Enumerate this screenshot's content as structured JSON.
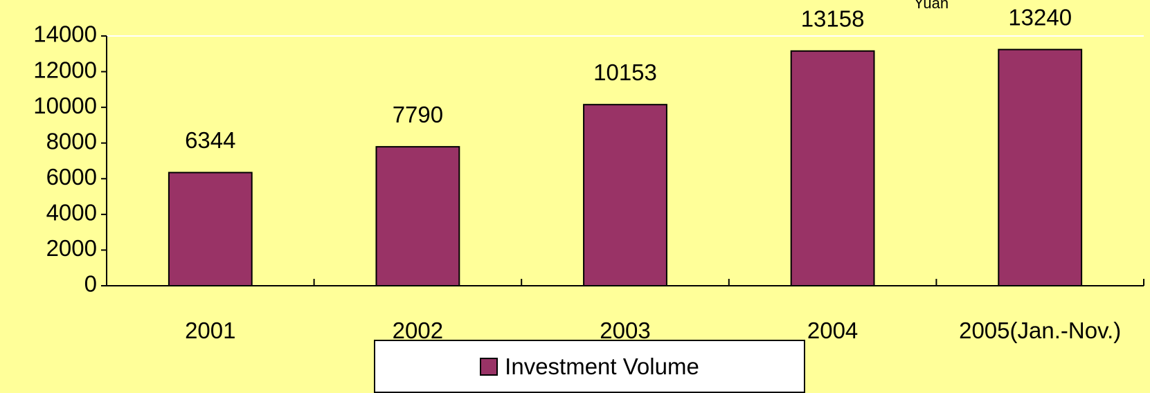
{
  "chart_data": {
    "type": "bar",
    "unit": "Yuan",
    "categories": [
      "2001",
      "2002",
      "2003",
      "2004",
      "2005(Jan.-Nov.)"
    ],
    "series": [
      {
        "name": "Investment Volume",
        "color": "#993366",
        "values": [
          6344,
          7790,
          10153,
          13158,
          13240
        ]
      }
    ],
    "ylim": [
      0,
      14000
    ],
    "yticks": [
      0,
      2000,
      4000,
      6000,
      8000,
      10000,
      12000,
      14000
    ]
  }
}
